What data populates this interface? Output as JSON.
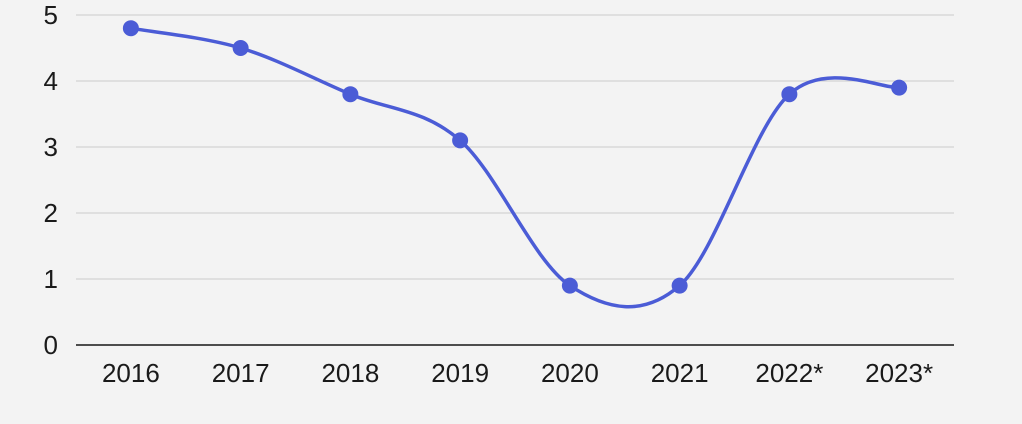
{
  "chart_data": {
    "type": "line",
    "categories": [
      "2016",
      "2017",
      "2018",
      "2019",
      "2020",
      "2021",
      "2022*",
      "2023*"
    ],
    "values": [
      4.8,
      4.5,
      3.8,
      3.1,
      0.9,
      0.9,
      3.8,
      3.9
    ],
    "title": "",
    "xlabel": "",
    "ylabel": "",
    "ylim": [
      0,
      5
    ],
    "y_ticks": [
      0,
      1,
      2,
      3,
      4,
      5
    ],
    "grid": true,
    "legend": false,
    "smooth": true,
    "line_color": "#4b5cd6",
    "marker_color": "#4b5cd6",
    "grid_color": "#cbcbcb",
    "axis_line_color": "#4d4d4d",
    "tick_label_color": "#1a1a1a",
    "background_color": "#f3f3f3"
  }
}
